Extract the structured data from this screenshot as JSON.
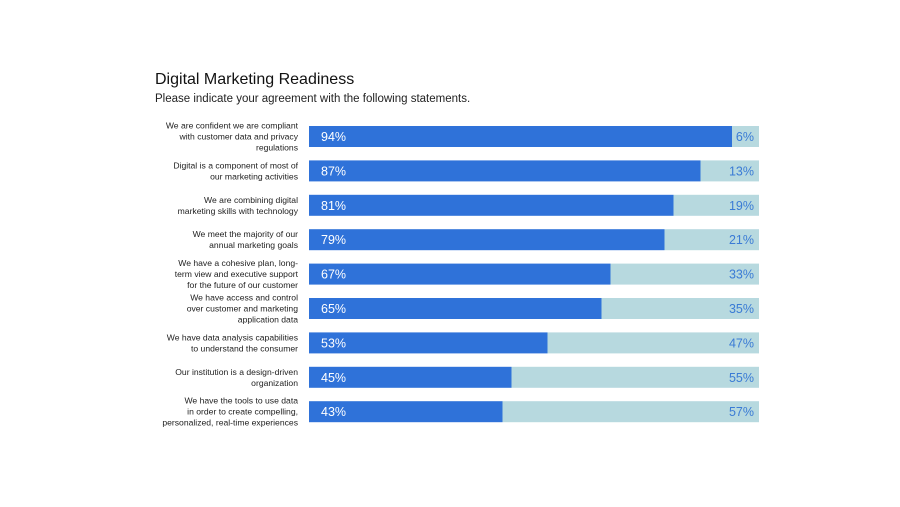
{
  "header": {
    "title": "Digital Marketing Readiness",
    "subtitle": "Please indicate your agreement with the following statements."
  },
  "colors": {
    "agree": "#2f72d9",
    "rest": "#b7d9df",
    "agree_label": "#ffffff",
    "rest_label": "#3a7bd5"
  },
  "chart_data": {
    "type": "bar",
    "orientation": "horizontal",
    "stacked": true,
    "title": "Digital Marketing Readiness",
    "subtitle": "Please indicate your agreement with the following statements.",
    "categories": [
      [
        "We are confident we are compliant",
        "with customer data and privacy",
        "regulations"
      ],
      [
        "Digital is  a component of most of",
        "our marketing activities"
      ],
      [
        "We are combining digital",
        "marketing skills with technology"
      ],
      [
        "We meet  the majority of our",
        "annual marketing goals"
      ],
      [
        "We have a cohesive plan, long-",
        "term view and executive support",
        "for the future of our customer"
      ],
      [
        "We have access and control",
        "over customer and marketing",
        "application data"
      ],
      [
        "We have data analysis capabilities",
        "to understand the consumer"
      ],
      [
        "Our institution is a design-driven",
        "organization"
      ],
      [
        "We have the tools to use data",
        "in order to create compelling,",
        "personalized, real-time experiences"
      ]
    ],
    "series": [
      {
        "values": [
          94,
          87,
          81,
          79,
          67,
          65,
          53,
          45,
          43
        ],
        "labels": [
          "94%",
          "87%",
          "81%",
          "79%",
          "67%",
          "65%",
          "53%",
          "45%",
          "43%"
        ]
      },
      {
        "values": [
          6,
          13,
          19,
          21,
          33,
          35,
          47,
          55,
          57
        ],
        "labels": [
          "6%",
          "13%",
          "19%",
          "21%",
          "33%",
          "35%",
          "47%",
          "55%",
          "57%"
        ]
      }
    ],
    "xlim": [
      0,
      100
    ],
    "legend": "none",
    "grid": false
  }
}
